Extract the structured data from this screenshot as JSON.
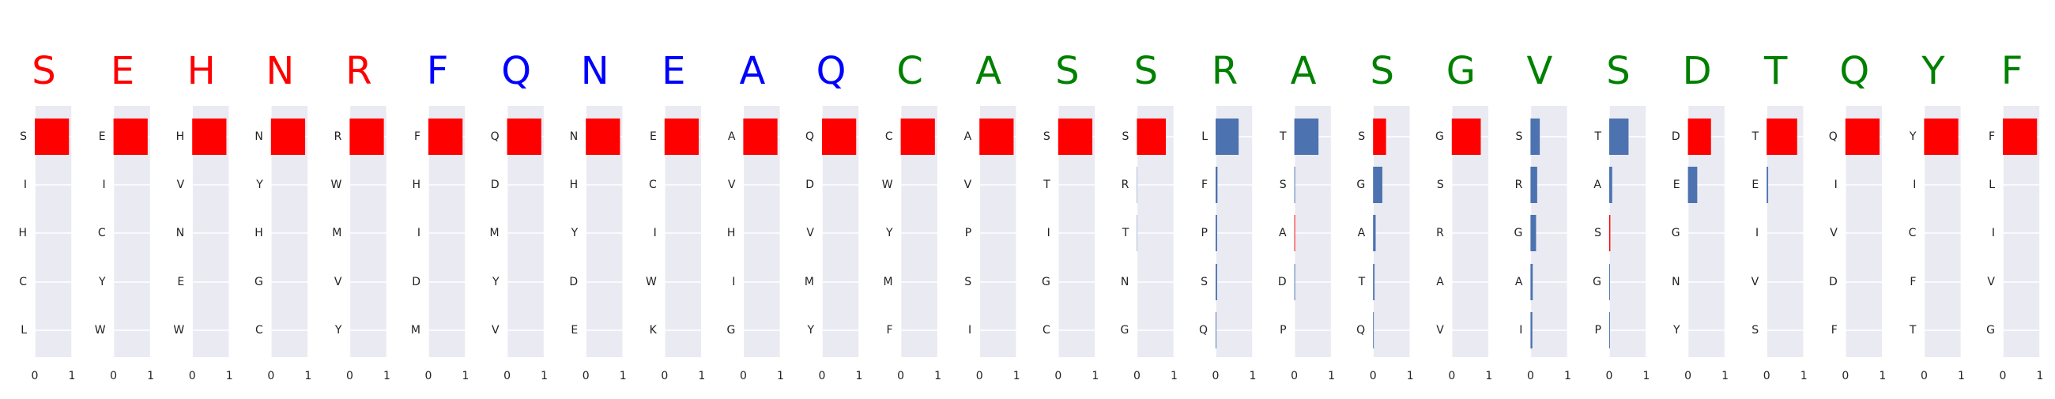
{
  "chart_data": {
    "type": "bar",
    "orientation": "horizontal",
    "xlim": [
      0,
      1
    ],
    "xticks": [
      "0",
      "1"
    ],
    "grid": true,
    "colors": {
      "red": "#ff0000",
      "blue": "#0000ff",
      "green": "#008000",
      "bar_blue": "#4c72b0",
      "bar_red": "#ff0000",
      "panel_bg": "#eaeaf2"
    },
    "positions": [
      {
        "residue": "S",
        "residue_color": "red",
        "candidates": [
          {
            "aa": "S",
            "value": 0.92,
            "color": "bar_red"
          },
          {
            "aa": "I",
            "value": 0.0,
            "color": "bar_blue"
          },
          {
            "aa": "H",
            "value": 0.0,
            "color": "bar_blue"
          },
          {
            "aa": "C",
            "value": 0.0,
            "color": "bar_blue"
          },
          {
            "aa": "L",
            "value": 0.0,
            "color": "bar_blue"
          }
        ]
      },
      {
        "residue": "E",
        "residue_color": "red",
        "candidates": [
          {
            "aa": "E",
            "value": 0.92,
            "color": "bar_red"
          },
          {
            "aa": "I",
            "value": 0.0,
            "color": "bar_blue"
          },
          {
            "aa": "C",
            "value": 0.0,
            "color": "bar_blue"
          },
          {
            "aa": "Y",
            "value": 0.0,
            "color": "bar_blue"
          },
          {
            "aa": "W",
            "value": 0.0,
            "color": "bar_blue"
          }
        ]
      },
      {
        "residue": "H",
        "residue_color": "red",
        "candidates": [
          {
            "aa": "H",
            "value": 0.92,
            "color": "bar_red"
          },
          {
            "aa": "V",
            "value": 0.0,
            "color": "bar_blue"
          },
          {
            "aa": "N",
            "value": 0.0,
            "color": "bar_blue"
          },
          {
            "aa": "E",
            "value": 0.0,
            "color": "bar_blue"
          },
          {
            "aa": "W",
            "value": 0.0,
            "color": "bar_blue"
          }
        ]
      },
      {
        "residue": "N",
        "residue_color": "red",
        "candidates": [
          {
            "aa": "N",
            "value": 0.92,
            "color": "bar_red"
          },
          {
            "aa": "Y",
            "value": 0.0,
            "color": "bar_blue"
          },
          {
            "aa": "H",
            "value": 0.0,
            "color": "bar_blue"
          },
          {
            "aa": "G",
            "value": 0.0,
            "color": "bar_blue"
          },
          {
            "aa": "C",
            "value": 0.0,
            "color": "bar_blue"
          }
        ]
      },
      {
        "residue": "R",
        "residue_color": "red",
        "candidates": [
          {
            "aa": "R",
            "value": 0.92,
            "color": "bar_red"
          },
          {
            "aa": "W",
            "value": 0.0,
            "color": "bar_blue"
          },
          {
            "aa": "M",
            "value": 0.0,
            "color": "bar_blue"
          },
          {
            "aa": "V",
            "value": 0.0,
            "color": "bar_blue"
          },
          {
            "aa": "Y",
            "value": 0.0,
            "color": "bar_blue"
          }
        ]
      },
      {
        "residue": "F",
        "residue_color": "blue",
        "candidates": [
          {
            "aa": "F",
            "value": 0.92,
            "color": "bar_red"
          },
          {
            "aa": "H",
            "value": 0.0,
            "color": "bar_blue"
          },
          {
            "aa": "I",
            "value": 0.0,
            "color": "bar_blue"
          },
          {
            "aa": "D",
            "value": 0.0,
            "color": "bar_blue"
          },
          {
            "aa": "M",
            "value": 0.0,
            "color": "bar_blue"
          }
        ]
      },
      {
        "residue": "Q",
        "residue_color": "blue",
        "candidates": [
          {
            "aa": "Q",
            "value": 0.92,
            "color": "bar_red"
          },
          {
            "aa": "D",
            "value": 0.0,
            "color": "bar_blue"
          },
          {
            "aa": "M",
            "value": 0.0,
            "color": "bar_blue"
          },
          {
            "aa": "Y",
            "value": 0.0,
            "color": "bar_blue"
          },
          {
            "aa": "V",
            "value": 0.0,
            "color": "bar_blue"
          }
        ]
      },
      {
        "residue": "N",
        "residue_color": "blue",
        "candidates": [
          {
            "aa": "N",
            "value": 0.92,
            "color": "bar_red"
          },
          {
            "aa": "H",
            "value": 0.0,
            "color": "bar_blue"
          },
          {
            "aa": "Y",
            "value": 0.0,
            "color": "bar_blue"
          },
          {
            "aa": "D",
            "value": 0.0,
            "color": "bar_blue"
          },
          {
            "aa": "E",
            "value": 0.0,
            "color": "bar_blue"
          }
        ]
      },
      {
        "residue": "E",
        "residue_color": "blue",
        "candidates": [
          {
            "aa": "E",
            "value": 0.92,
            "color": "bar_red"
          },
          {
            "aa": "C",
            "value": 0.0,
            "color": "bar_blue"
          },
          {
            "aa": "I",
            "value": 0.0,
            "color": "bar_blue"
          },
          {
            "aa": "W",
            "value": 0.0,
            "color": "bar_blue"
          },
          {
            "aa": "K",
            "value": 0.0,
            "color": "bar_blue"
          }
        ]
      },
      {
        "residue": "A",
        "residue_color": "blue",
        "candidates": [
          {
            "aa": "A",
            "value": 0.92,
            "color": "bar_red"
          },
          {
            "aa": "V",
            "value": 0.0,
            "color": "bar_blue"
          },
          {
            "aa": "H",
            "value": 0.0,
            "color": "bar_blue"
          },
          {
            "aa": "I",
            "value": 0.0,
            "color": "bar_blue"
          },
          {
            "aa": "G",
            "value": 0.0,
            "color": "bar_blue"
          }
        ]
      },
      {
        "residue": "Q",
        "residue_color": "blue",
        "candidates": [
          {
            "aa": "Q",
            "value": 0.92,
            "color": "bar_red"
          },
          {
            "aa": "D",
            "value": 0.0,
            "color": "bar_blue"
          },
          {
            "aa": "V",
            "value": 0.0,
            "color": "bar_blue"
          },
          {
            "aa": "M",
            "value": 0.0,
            "color": "bar_blue"
          },
          {
            "aa": "Y",
            "value": 0.0,
            "color": "bar_blue"
          }
        ]
      },
      {
        "residue": "C",
        "residue_color": "green",
        "candidates": [
          {
            "aa": "C",
            "value": 0.92,
            "color": "bar_red"
          },
          {
            "aa": "W",
            "value": 0.0,
            "color": "bar_blue"
          },
          {
            "aa": "Y",
            "value": 0.0,
            "color": "bar_blue"
          },
          {
            "aa": "M",
            "value": 0.0,
            "color": "bar_blue"
          },
          {
            "aa": "F",
            "value": 0.0,
            "color": "bar_blue"
          }
        ]
      },
      {
        "residue": "A",
        "residue_color": "green",
        "candidates": [
          {
            "aa": "A",
            "value": 0.92,
            "color": "bar_red"
          },
          {
            "aa": "V",
            "value": 0.0,
            "color": "bar_blue"
          },
          {
            "aa": "P",
            "value": 0.0,
            "color": "bar_blue"
          },
          {
            "aa": "S",
            "value": 0.0,
            "color": "bar_blue"
          },
          {
            "aa": "I",
            "value": 0.0,
            "color": "bar_blue"
          }
        ]
      },
      {
        "residue": "S",
        "residue_color": "green",
        "candidates": [
          {
            "aa": "S",
            "value": 0.92,
            "color": "bar_red"
          },
          {
            "aa": "T",
            "value": 0.0,
            "color": "bar_blue"
          },
          {
            "aa": "I",
            "value": 0.0,
            "color": "bar_blue"
          },
          {
            "aa": "G",
            "value": 0.0,
            "color": "bar_blue"
          },
          {
            "aa": "C",
            "value": 0.0,
            "color": "bar_blue"
          }
        ]
      },
      {
        "residue": "S",
        "residue_color": "green",
        "candidates": [
          {
            "aa": "S",
            "value": 0.78,
            "color": "bar_red"
          },
          {
            "aa": "R",
            "value": 0.01,
            "color": "bar_blue"
          },
          {
            "aa": "T",
            "value": 0.01,
            "color": "bar_blue"
          },
          {
            "aa": "N",
            "value": 0.0,
            "color": "bar_blue"
          },
          {
            "aa": "G",
            "value": 0.0,
            "color": "bar_blue"
          }
        ]
      },
      {
        "residue": "R",
        "residue_color": "green",
        "candidates": [
          {
            "aa": "L",
            "value": 0.62,
            "color": "bar_blue"
          },
          {
            "aa": "F",
            "value": 0.05,
            "color": "bar_blue"
          },
          {
            "aa": "P",
            "value": 0.04,
            "color": "bar_blue"
          },
          {
            "aa": "S",
            "value": 0.04,
            "color": "bar_blue"
          },
          {
            "aa": "Q",
            "value": 0.02,
            "color": "bar_blue"
          }
        ]
      },
      {
        "residue": "A",
        "residue_color": "green",
        "candidates": [
          {
            "aa": "T",
            "value": 0.65,
            "color": "bar_blue"
          },
          {
            "aa": "S",
            "value": 0.02,
            "color": "bar_blue"
          },
          {
            "aa": "A",
            "value": 0.02,
            "color": "bar_red"
          },
          {
            "aa": "D",
            "value": 0.02,
            "color": "bar_blue"
          },
          {
            "aa": "P",
            "value": 0.0,
            "color": "bar_blue"
          }
        ]
      },
      {
        "residue": "S",
        "residue_color": "green",
        "candidates": [
          {
            "aa": "S",
            "value": 0.35,
            "color": "bar_red"
          },
          {
            "aa": "G",
            "value": 0.25,
            "color": "bar_blue"
          },
          {
            "aa": "A",
            "value": 0.07,
            "color": "bar_blue"
          },
          {
            "aa": "T",
            "value": 0.04,
            "color": "bar_blue"
          },
          {
            "aa": "Q",
            "value": 0.02,
            "color": "bar_blue"
          }
        ]
      },
      {
        "residue": "G",
        "residue_color": "green",
        "candidates": [
          {
            "aa": "G",
            "value": 0.78,
            "color": "bar_red"
          },
          {
            "aa": "S",
            "value": 0.0,
            "color": "bar_blue"
          },
          {
            "aa": "R",
            "value": 0.0,
            "color": "bar_blue"
          },
          {
            "aa": "A",
            "value": 0.0,
            "color": "bar_blue"
          },
          {
            "aa": "V",
            "value": 0.0,
            "color": "bar_blue"
          }
        ]
      },
      {
        "residue": "V",
        "residue_color": "green",
        "candidates": [
          {
            "aa": "S",
            "value": 0.25,
            "color": "bar_blue"
          },
          {
            "aa": "R",
            "value": 0.18,
            "color": "bar_blue"
          },
          {
            "aa": "G",
            "value": 0.15,
            "color": "bar_blue"
          },
          {
            "aa": "A",
            "value": 0.06,
            "color": "bar_blue"
          },
          {
            "aa": "I",
            "value": 0.05,
            "color": "bar_blue"
          }
        ]
      },
      {
        "residue": "S",
        "residue_color": "green",
        "candidates": [
          {
            "aa": "T",
            "value": 0.52,
            "color": "bar_blue"
          },
          {
            "aa": "A",
            "value": 0.08,
            "color": "bar_blue"
          },
          {
            "aa": "S",
            "value": 0.03,
            "color": "bar_red"
          },
          {
            "aa": "G",
            "value": 0.02,
            "color": "bar_blue"
          },
          {
            "aa": "P",
            "value": 0.02,
            "color": "bar_blue"
          }
        ]
      },
      {
        "residue": "D",
        "residue_color": "green",
        "candidates": [
          {
            "aa": "D",
            "value": 0.62,
            "color": "bar_red"
          },
          {
            "aa": "E",
            "value": 0.25,
            "color": "bar_blue"
          },
          {
            "aa": "G",
            "value": 0.0,
            "color": "bar_blue"
          },
          {
            "aa": "N",
            "value": 0.0,
            "color": "bar_blue"
          },
          {
            "aa": "Y",
            "value": 0.0,
            "color": "bar_blue"
          }
        ]
      },
      {
        "residue": "T",
        "residue_color": "green",
        "candidates": [
          {
            "aa": "T",
            "value": 0.82,
            "color": "bar_red"
          },
          {
            "aa": "E",
            "value": 0.04,
            "color": "bar_blue"
          },
          {
            "aa": "I",
            "value": 0.0,
            "color": "bar_blue"
          },
          {
            "aa": "V",
            "value": 0.0,
            "color": "bar_blue"
          },
          {
            "aa": "S",
            "value": 0.0,
            "color": "bar_blue"
          }
        ]
      },
      {
        "residue": "Q",
        "residue_color": "green",
        "candidates": [
          {
            "aa": "Q",
            "value": 0.92,
            "color": "bar_red"
          },
          {
            "aa": "I",
            "value": 0.0,
            "color": "bar_blue"
          },
          {
            "aa": "V",
            "value": 0.0,
            "color": "bar_blue"
          },
          {
            "aa": "D",
            "value": 0.0,
            "color": "bar_blue"
          },
          {
            "aa": "F",
            "value": 0.0,
            "color": "bar_blue"
          }
        ]
      },
      {
        "residue": "Y",
        "residue_color": "green",
        "candidates": [
          {
            "aa": "Y",
            "value": 0.92,
            "color": "bar_red"
          },
          {
            "aa": "I",
            "value": 0.0,
            "color": "bar_blue"
          },
          {
            "aa": "C",
            "value": 0.0,
            "color": "bar_blue"
          },
          {
            "aa": "F",
            "value": 0.0,
            "color": "bar_blue"
          },
          {
            "aa": "T",
            "value": 0.0,
            "color": "bar_blue"
          }
        ]
      },
      {
        "residue": "F",
        "residue_color": "green",
        "candidates": [
          {
            "aa": "F",
            "value": 0.92,
            "color": "bar_red"
          },
          {
            "aa": "L",
            "value": 0.0,
            "color": "bar_blue"
          },
          {
            "aa": "I",
            "value": 0.0,
            "color": "bar_blue"
          },
          {
            "aa": "V",
            "value": 0.0,
            "color": "bar_blue"
          },
          {
            "aa": "G",
            "value": 0.0,
            "color": "bar_blue"
          }
        ]
      }
    ]
  }
}
